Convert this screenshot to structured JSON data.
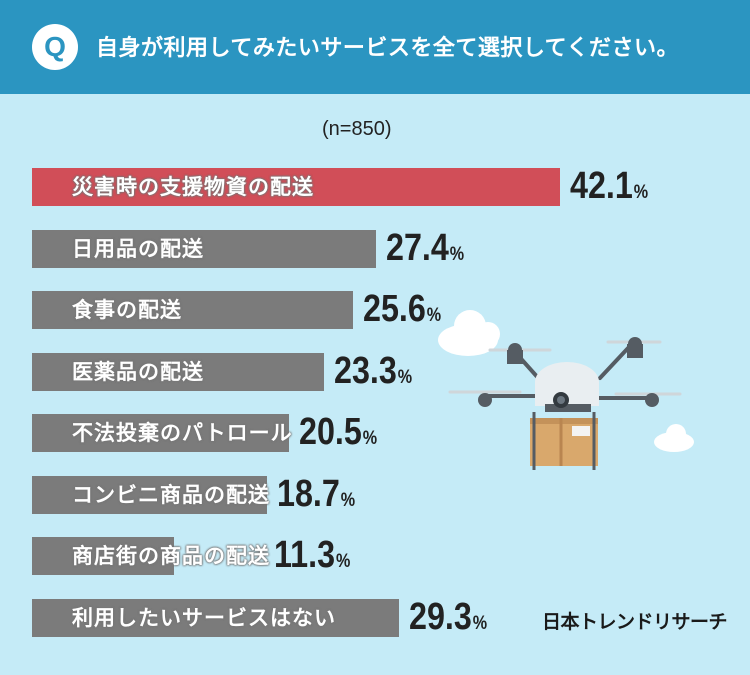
{
  "header": {
    "q_badge": "Q",
    "question": "自身が利用してみたいサービスを全て選択してください。"
  },
  "sample_size": "(n=850)",
  "logo": "日本トレンドリサーチ",
  "colors": {
    "header": "#2b95c1",
    "background": "#c5ebf7",
    "highlight_bar": "#d14e58",
    "bar": "#7b7b7b"
  },
  "chart_data": {
    "type": "bar",
    "orientation": "horizontal",
    "title": "自身が利用してみたいサービスを全て選択してください。",
    "xlim": [
      0,
      50
    ],
    "unit": "%",
    "categories": [
      "災害時の支援物資の配送",
      "日用品の配送",
      "食事の配送",
      "医薬品の配送",
      "不法投棄のパトロール",
      "コンビニ商品の配送",
      "商店街の商品の配送",
      "利用したいサービスはない"
    ],
    "values": [
      42.1,
      27.4,
      25.6,
      23.3,
      20.5,
      18.7,
      11.3,
      29.3
    ],
    "value_labels": [
      "42.1",
      "27.4",
      "25.6",
      "23.3",
      "20.5",
      "18.7",
      "11.3",
      "29.3"
    ],
    "highlight_index": 0
  }
}
